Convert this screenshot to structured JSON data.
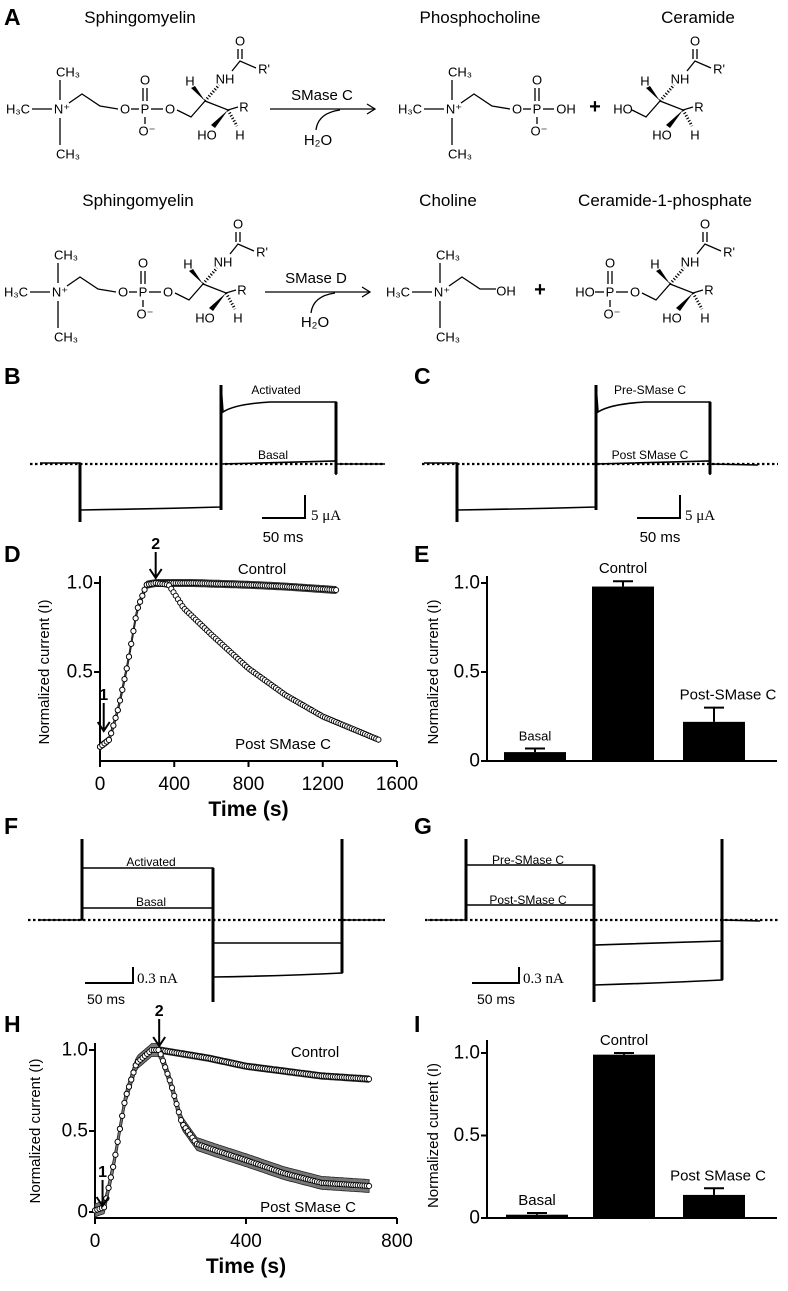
{
  "panel_labels": {
    "a": "A",
    "b": "B",
    "c": "C",
    "d": "D",
    "e": "E",
    "f": "F",
    "g": "G",
    "h": "H",
    "i": "I"
  },
  "panel_a": {
    "row1": {
      "substrate": "Sphingomyelin",
      "enzyme": "SMase C",
      "cofactor": "H₂O",
      "product1": "Phosphocholine",
      "product2": "Ceramide",
      "plus": "+"
    },
    "row2": {
      "substrate": "Sphingomyelin",
      "enzyme": "SMase D",
      "cofactor": "H₂O",
      "product1": "Choline",
      "product2": "Ceramide-1-phosphate",
      "plus": "+"
    },
    "atoms": {
      "ch3": "CH₃",
      "h3c": "H₃C",
      "n_plus": "N⁺",
      "o": "O",
      "p": "P",
      "o_minus": "O⁻",
      "h": "H",
      "nh": "NH",
      "r": "R",
      "r_prime": "R'",
      "ho": "HO",
      "oh": "OH"
    }
  },
  "panel_b": {
    "activated": "Activated",
    "basal": "Basal",
    "scale_y": "5 μA",
    "scale_x": "50 ms"
  },
  "panel_c": {
    "pre": "Pre-SMase C",
    "post": "Post SMase C",
    "scale_y": "5 μA",
    "scale_x": "50 ms"
  },
  "panel_f": {
    "activated": "Activated",
    "basal": "Basal",
    "scale_y": "0.3 nA",
    "scale_x": "50 ms"
  },
  "panel_g": {
    "pre": "Pre-SMase C",
    "post": "Post-SMase C",
    "scale_y": "0.3 nA",
    "scale_x": "50 ms"
  },
  "chart_data": [
    {
      "id": "D",
      "type": "scatter",
      "xlabel": "Time (s)",
      "ylabel": "Normalized current (I)",
      "xlim": [
        0,
        1600
      ],
      "ylim": [
        0,
        1.0
      ],
      "xticks": [
        "0",
        "400",
        "800",
        "1200",
        "1600"
      ],
      "yticks": [
        "0.5",
        "1.0"
      ],
      "annotations": [
        {
          "text": "1",
          "x": 20
        },
        {
          "text": "2",
          "x": 300
        }
      ],
      "series": [
        {
          "name": "Control",
          "points": [
            [
              0,
              0.08
            ],
            [
              50,
              0.12
            ],
            [
              100,
              0.3
            ],
            [
              150,
              0.55
            ],
            [
              200,
              0.85
            ],
            [
              250,
              0.99
            ],
            [
              300,
              1.0
            ],
            [
              500,
              1.0
            ],
            [
              800,
              0.99
            ],
            [
              1000,
              0.98
            ],
            [
              1280,
              0.96
            ]
          ],
          "err": 0.02
        },
        {
          "name": "Post SMase C",
          "points": [
            [
              0,
              0.08
            ],
            [
              50,
              0.12
            ],
            [
              100,
              0.3
            ],
            [
              150,
              0.55
            ],
            [
              200,
              0.85
            ],
            [
              250,
              0.99
            ],
            [
              300,
              1.0
            ],
            [
              370,
              0.99
            ],
            [
              450,
              0.86
            ],
            [
              600,
              0.71
            ],
            [
              800,
              0.52
            ],
            [
              1000,
              0.37
            ],
            [
              1200,
              0.25
            ],
            [
              1500,
              0.12
            ]
          ],
          "err": 0.015
        }
      ]
    },
    {
      "id": "E",
      "type": "bar",
      "ylabel": "Normalized current (I)",
      "ylim": [
        0,
        1.0
      ],
      "yticks": [
        "0",
        "0.5",
        "1.0"
      ],
      "categories": [
        "Basal",
        "Control",
        "Post-SMase C"
      ],
      "values": [
        0.05,
        0.98,
        0.22
      ],
      "errors": [
        0.02,
        0.03,
        0.08
      ]
    },
    {
      "id": "H",
      "type": "scatter",
      "xlabel": "Time (s)",
      "ylabel": "Normalized current (I)",
      "xlim": [
        0,
        800
      ],
      "ylim": [
        0,
        1.0
      ],
      "xticks": [
        "0",
        "400",
        "800"
      ],
      "yticks": [
        "0",
        "0.5",
        "1.0"
      ],
      "annotations": [
        {
          "text": "1",
          "x": 20
        },
        {
          "text": "2",
          "x": 170
        }
      ],
      "series": [
        {
          "name": "Control",
          "points": [
            [
              0,
              0.01
            ],
            [
              25,
              0.03
            ],
            [
              50,
              0.3
            ],
            [
              80,
              0.7
            ],
            [
              110,
              0.92
            ],
            [
              150,
              1.0
            ],
            [
              170,
              1.0
            ],
            [
              300,
              0.95
            ],
            [
              400,
              0.9
            ],
            [
              500,
              0.87
            ],
            [
              600,
              0.84
            ],
            [
              730,
              0.82
            ]
          ],
          "err": 0.02
        },
        {
          "name": "Post SMase C",
          "points": [
            [
              0,
              0.01
            ],
            [
              25,
              0.03
            ],
            [
              50,
              0.3
            ],
            [
              80,
              0.7
            ],
            [
              110,
              0.92
            ],
            [
              150,
              1.0
            ],
            [
              170,
              1.0
            ],
            [
              200,
              0.8
            ],
            [
              230,
              0.55
            ],
            [
              270,
              0.42
            ],
            [
              320,
              0.38
            ],
            [
              400,
              0.32
            ],
            [
              500,
              0.24
            ],
            [
              600,
              0.18
            ],
            [
              730,
              0.16
            ]
          ],
          "err": 0.04
        }
      ]
    },
    {
      "id": "I",
      "type": "bar",
      "ylabel": "Normalized current (I)",
      "ylim": [
        0,
        1.0
      ],
      "yticks": [
        "0",
        "0.5",
        "1.0"
      ],
      "categories": [
        "Basal",
        "Control",
        "Post SMase C"
      ],
      "values": [
        0.02,
        0.99,
        0.14
      ],
      "errors": [
        0.01,
        0.01,
        0.04
      ]
    }
  ]
}
